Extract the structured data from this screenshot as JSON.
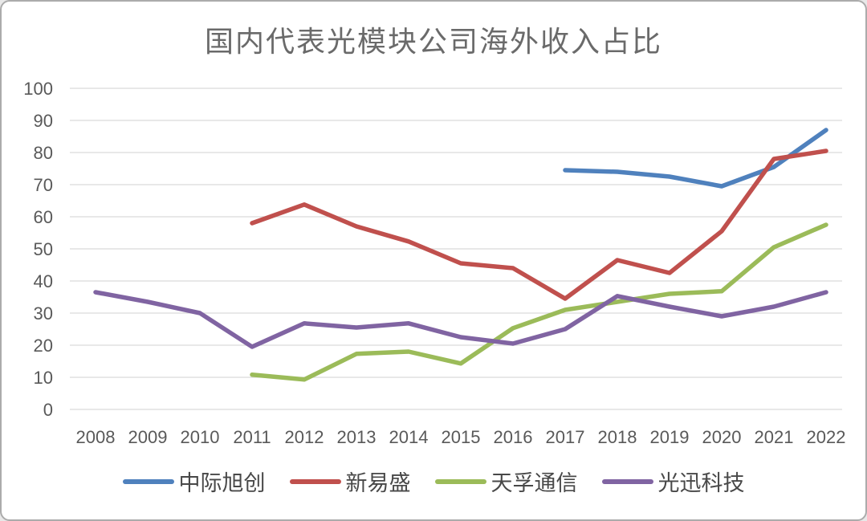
{
  "title": "国内代表光模块公司海外收入占比",
  "colors": {
    "background": "#FFFFFF",
    "border": "#ABABAB",
    "grid": "#D9D9D9",
    "axis_text": "#595959",
    "title_text": "#6A6A6A",
    "legend_text": "#484848"
  },
  "chart_data": {
    "type": "line",
    "title": "国内代表光模块公司海外收入占比",
    "categories": [
      "2008",
      "2009",
      "2010",
      "2011",
      "2012",
      "2013",
      "2014",
      "2015",
      "2016",
      "2017",
      "2018",
      "2019",
      "2020",
      "2021",
      "2022"
    ],
    "series": [
      {
        "name": "中际旭创",
        "color": "#4F81BD",
        "values": [
          null,
          null,
          null,
          null,
          null,
          null,
          null,
          null,
          null,
          74.5,
          74,
          72.5,
          69.5,
          75.5,
          87
        ]
      },
      {
        "name": "新易盛",
        "color": "#C0504D",
        "values": [
          null,
          null,
          null,
          58,
          63.8,
          57,
          52.3,
          45.5,
          44,
          34.5,
          46.5,
          42.5,
          55.5,
          78,
          80.5
        ]
      },
      {
        "name": "天孚通信",
        "color": "#9BBB59",
        "values": [
          null,
          null,
          null,
          10.8,
          9.3,
          17.3,
          18,
          14.3,
          25.3,
          31,
          33.5,
          36,
          36.8,
          50.5,
          57.5
        ]
      },
      {
        "name": "光迅科技",
        "color": "#8064A2",
        "values": [
          36.5,
          33.5,
          30,
          19.5,
          26.8,
          25.5,
          26.8,
          22.5,
          20.5,
          25,
          35.3,
          32,
          29,
          32,
          36.5
        ]
      }
    ],
    "xlabel": "",
    "ylabel": "",
    "ylim": [
      0,
      100
    ],
    "y_ticks": [
      0,
      10,
      20,
      30,
      40,
      50,
      60,
      70,
      80,
      90,
      100
    ],
    "grid": "horizontal",
    "legend_position": "bottom",
    "unit": "percent"
  }
}
